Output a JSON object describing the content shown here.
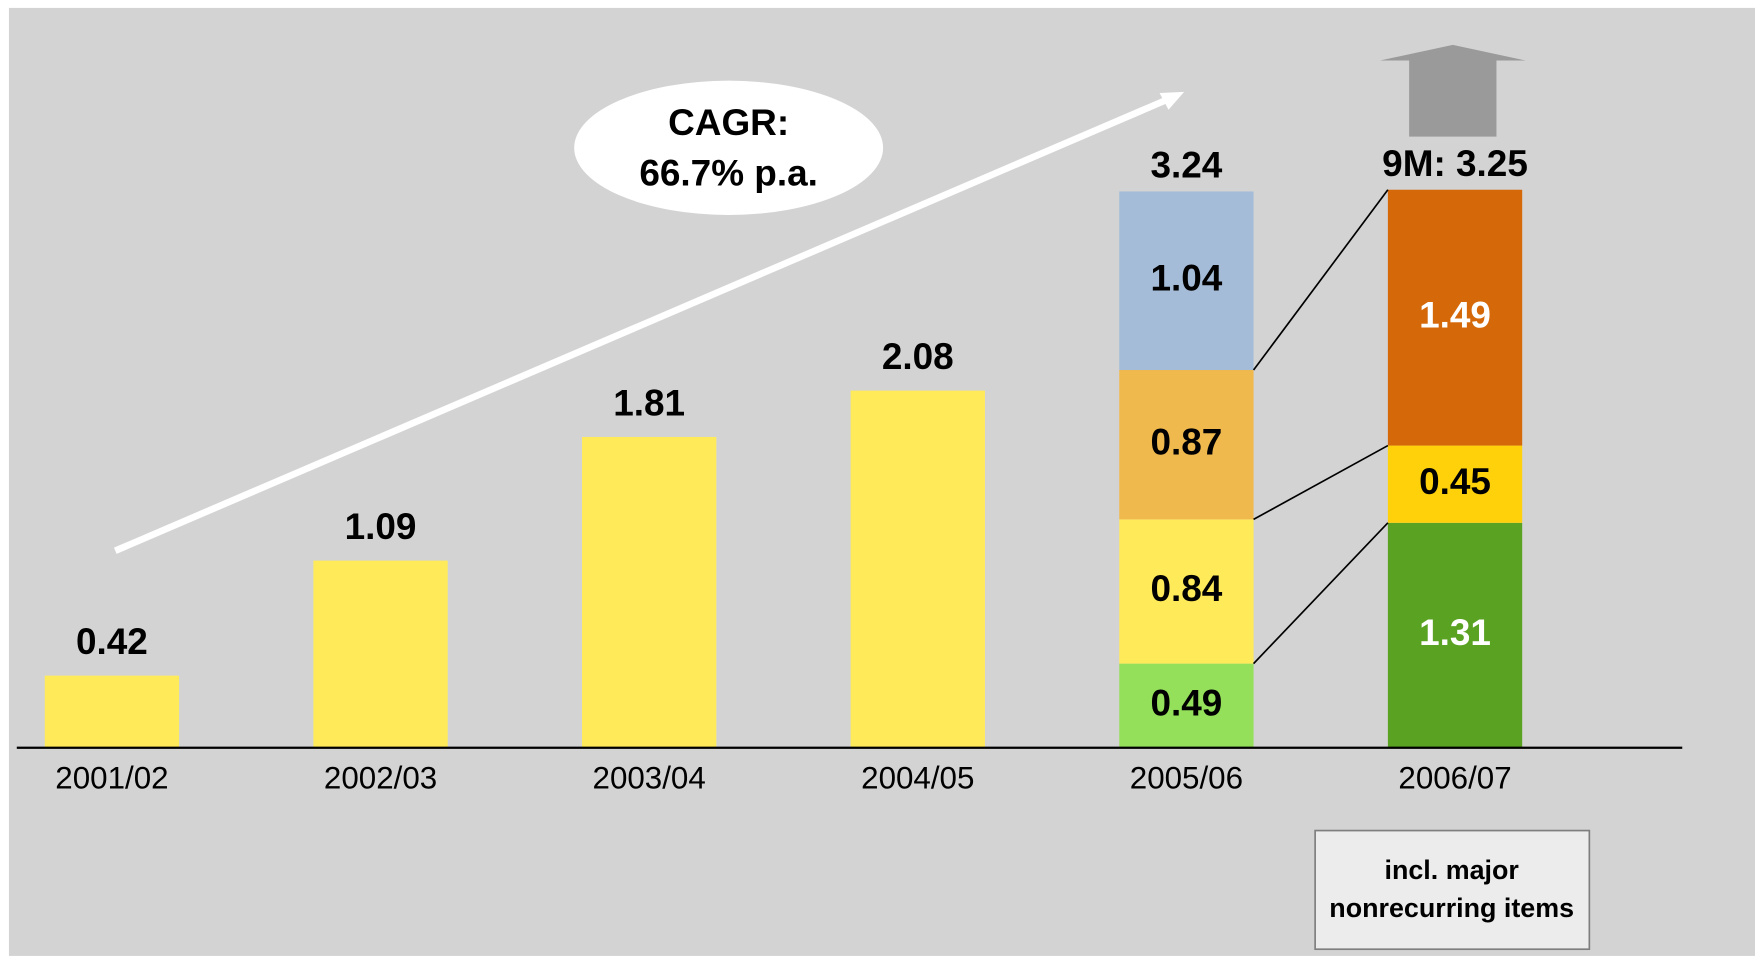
{
  "chart_data": {
    "type": "stacked_bar",
    "categories": [
      "2001/02",
      "2002/03",
      "2003/04",
      "2004/05",
      "2005/06",
      "2006/07"
    ],
    "series": [
      {
        "values": [
          0.42,
          1.09,
          1.81,
          2.08,
          0.49,
          1.31
        ],
        "colors": [
          "#ffeb5a",
          "#ffeb5a",
          "#ffeb5a",
          "#ffeb5a",
          "#95e05a",
          "#59a222"
        ]
      },
      {
        "values": [
          null,
          null,
          null,
          null,
          0.84,
          0.45
        ],
        "colors": [
          null,
          null,
          null,
          null,
          "#ffeb5a",
          "#ffd10a"
        ]
      },
      {
        "values": [
          null,
          null,
          null,
          null,
          0.87,
          1.49
        ],
        "colors": [
          null,
          null,
          null,
          null,
          "#f0b94e",
          "#d5690a"
        ]
      },
      {
        "values": [
          null,
          null,
          null,
          null,
          1.04,
          null
        ],
        "colors": [
          null,
          null,
          null,
          null,
          "#a4bcd8",
          null
        ]
      }
    ],
    "totals": [
      null,
      null,
      null,
      null,
      3.24,
      3.25
    ],
    "total_labels": [
      null,
      null,
      null,
      null,
      "3.24",
      "9M: 3.25"
    ],
    "ylim": [
      0,
      4
    ],
    "annotations": {
      "cagr": [
        "CAGR:",
        "66.7% p.a."
      ],
      "note": [
        "incl. major",
        "nonrecurring items"
      ]
    }
  }
}
